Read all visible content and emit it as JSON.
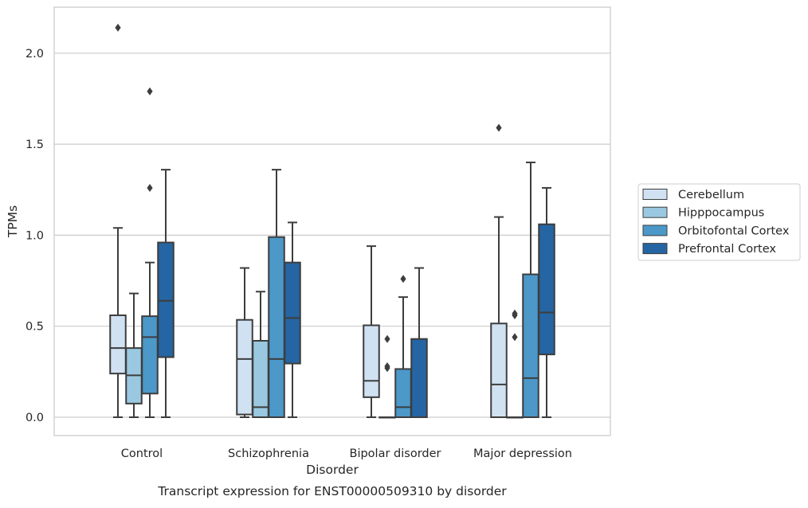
{
  "chart_data": {
    "type": "box",
    "title": "",
    "caption": "Transcript expression for ENST00000509310 by disorder",
    "xlabel": "Disorder",
    "ylabel": "TPMs",
    "ylim": [
      -0.1,
      2.26
    ],
    "yticks": [
      0.0,
      0.5,
      1.0,
      1.5,
      2.0
    ],
    "ytick_labels": [
      "0.0",
      "0.5",
      "1.0",
      "1.5",
      "2.0"
    ],
    "grid": true,
    "legend_placement": "right",
    "categories": [
      "Control",
      "Schizophrenia",
      "Bipolar disorder",
      "Major depression"
    ],
    "series": [
      {
        "name": "Cerebellum",
        "color": "#d0e1f2",
        "boxes": [
          {
            "whisker_low": 0.0,
            "q1": 0.24,
            "median": 0.38,
            "q3": 0.56,
            "whisker_high": 1.04,
            "outliers": [
              2.14
            ]
          },
          {
            "whisker_low": 0.0,
            "q1": 0.015,
            "median": 0.32,
            "q3": 0.535,
            "whisker_high": 0.82,
            "outliers": []
          },
          {
            "whisker_low": 0.0,
            "q1": 0.11,
            "median": 0.2,
            "q3": 0.505,
            "whisker_high": 0.94,
            "outliers": []
          },
          {
            "whisker_low": 0.0,
            "q1": 0.0,
            "median": 0.18,
            "q3": 0.515,
            "whisker_high": 1.1,
            "outliers": [
              1.59
            ]
          }
        ]
      },
      {
        "name": "Hipppocampus",
        "color": "#9ac8e0",
        "boxes": [
          {
            "whisker_low": 0.0,
            "q1": 0.075,
            "median": 0.23,
            "q3": 0.38,
            "whisker_high": 0.68,
            "outliers": []
          },
          {
            "whisker_low": 0.0,
            "q1": 0.0,
            "median": 0.055,
            "q3": 0.42,
            "whisker_high": 0.69,
            "outliers": []
          },
          {
            "whisker_low": 0.0,
            "q1": 0.0,
            "median": 0.0,
            "q3": 0.0,
            "whisker_high": 0.0,
            "outliers": [
              0.43,
              0.28,
              0.27
            ]
          },
          {
            "whisker_low": 0.0,
            "q1": 0.0,
            "median": 0.0,
            "q3": 0.0,
            "whisker_high": 0.0,
            "outliers": [
              0.57,
              0.56,
              0.44
            ]
          }
        ]
      },
      {
        "name": "Orbitofontal Cortex",
        "color": "#4b98c9",
        "boxes": [
          {
            "whisker_low": 0.0,
            "q1": 0.13,
            "median": 0.44,
            "q3": 0.555,
            "whisker_high": 0.85,
            "outliers": [
              1.79,
              1.26
            ]
          },
          {
            "whisker_low": 0.0,
            "q1": 0.0,
            "median": 0.32,
            "q3": 0.99,
            "whisker_high": 1.36,
            "outliers": []
          },
          {
            "whisker_low": 0.0,
            "q1": 0.0,
            "median": 0.055,
            "q3": 0.265,
            "whisker_high": 0.66,
            "outliers": [
              0.76
            ]
          },
          {
            "whisker_low": 0.0,
            "q1": 0.0,
            "median": 0.215,
            "q3": 0.785,
            "whisker_high": 1.4,
            "outliers": []
          }
        ]
      },
      {
        "name": "Prefrontal Cortex",
        "color": "#2565a3",
        "boxes": [
          {
            "whisker_low": 0.0,
            "q1": 0.33,
            "median": 0.64,
            "q3": 0.96,
            "whisker_high": 1.36,
            "outliers": []
          },
          {
            "whisker_low": 0.0,
            "q1": 0.295,
            "median": 0.545,
            "q3": 0.85,
            "whisker_high": 1.07,
            "outliers": []
          },
          {
            "whisker_low": 0.0,
            "q1": 0.0,
            "median": 0.0,
            "q3": 0.43,
            "whisker_high": 0.82,
            "outliers": []
          },
          {
            "whisker_low": 0.0,
            "q1": 0.345,
            "median": 0.575,
            "q3": 1.06,
            "whisker_high": 1.26,
            "outliers": []
          }
        ]
      }
    ]
  }
}
